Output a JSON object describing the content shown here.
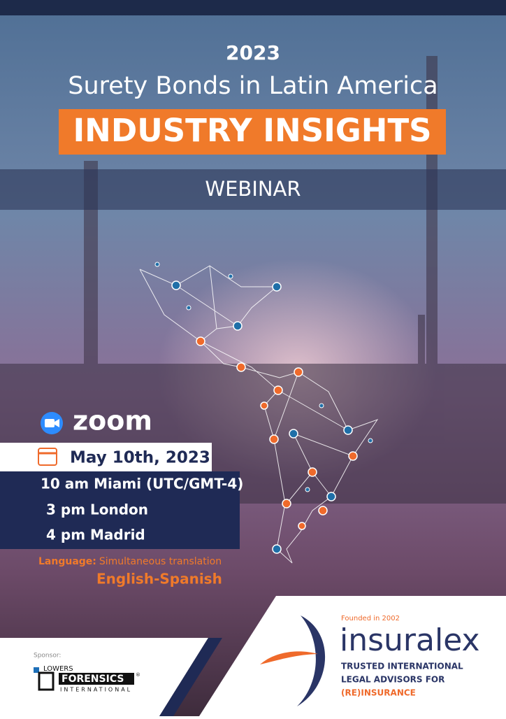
{
  "header": {
    "year": "2023",
    "title": "Surety Bonds in Latin America",
    "banner": "INDUSTRY INSIGHTS",
    "format": "WEBINAR"
  },
  "platform": "zoom",
  "schedule": {
    "date": "May 10th, 2023",
    "times": [
      "10 am Miami (UTC/GMT-4)",
      "3 pm London",
      "4 pm Madrid"
    ]
  },
  "language": {
    "label": "Language:",
    "text": "Simultaneous translation",
    "pair": "English-Spanish"
  },
  "sponsor": {
    "label": "Sponsor:",
    "logo": {
      "top": "LOWERS",
      "main": "FORENSICS",
      "mark": "®",
      "bottom": "INTERNATIONAL"
    }
  },
  "organizer": {
    "founded": "Founded in 2002",
    "name": "insuralex",
    "tagline": [
      "TRUSTED INTERNATIONAL",
      "LEGAL ADVISORS FOR",
      "(RE)INSURANCE"
    ]
  }
}
